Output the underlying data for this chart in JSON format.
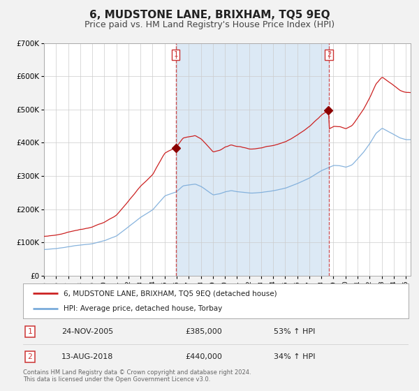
{
  "title": "6, MUDSTONE LANE, BRIXHAM, TQ5 9EQ",
  "subtitle": "Price paid vs. HM Land Registry's House Price Index (HPI)",
  "ylim": [
    0,
    700000
  ],
  "yticks": [
    0,
    100000,
    200000,
    300000,
    400000,
    500000,
    600000,
    700000
  ],
  "ytick_labels": [
    "£0",
    "£100K",
    "£200K",
    "£300K",
    "£400K",
    "£500K",
    "£600K",
    "£700K"
  ],
  "xlim_start": 1995.0,
  "xlim_end": 2025.4,
  "hpi_color": "#7aabda",
  "price_color": "#cc2222",
  "marker_color": "#8b0000",
  "fig_bg_color": "#f2f2f2",
  "plot_bg_color": "#ffffff",
  "shade_color": "#dce9f5",
  "grid_color": "#cccccc",
  "dashed_color": "#cc3333",
  "title_fontsize": 11,
  "subtitle_fontsize": 9,
  "legend_entries": [
    "6, MUDSTONE LANE, BRIXHAM, TQ5 9EQ (detached house)",
    "HPI: Average price, detached house, Torbay"
  ],
  "purchase1_date": 2005.92,
  "purchase1_price": 385000,
  "purchase2_date": 2018.62,
  "purchase2_price": 440000,
  "table_rows": [
    [
      "1",
      "24-NOV-2005",
      "£385,000",
      "53% ↑ HPI"
    ],
    [
      "2",
      "13-AUG-2018",
      "£440,000",
      "34% ↑ HPI"
    ]
  ],
  "footer_line1": "Contains HM Land Registry data © Crown copyright and database right 2024.",
  "footer_line2": "This data is licensed under the Open Government Licence v3.0.",
  "hpi_key_years": [
    1995.0,
    1996.0,
    1997.0,
    1998.0,
    1999.0,
    2000.0,
    2001.0,
    2002.0,
    2003.0,
    2004.0,
    2005.0,
    2005.92,
    2006.5,
    2007.5,
    2008.0,
    2008.5,
    2009.0,
    2009.5,
    2010.0,
    2010.5,
    2011.0,
    2012.0,
    2013.0,
    2014.0,
    2015.0,
    2016.0,
    2017.0,
    2018.0,
    2018.62,
    2019.0,
    2019.5,
    2020.0,
    2020.5,
    2021.0,
    2021.5,
    2022.0,
    2022.5,
    2023.0,
    2023.5,
    2024.0,
    2024.5,
    2025.0
  ],
  "hpi_key_vals": [
    78000,
    80000,
    85000,
    91000,
    96000,
    105000,
    120000,
    148000,
    175000,
    198000,
    240000,
    252000,
    270000,
    275000,
    268000,
    255000,
    242000,
    245000,
    252000,
    255000,
    252000,
    248000,
    250000,
    255000,
    264000,
    278000,
    295000,
    318000,
    328000,
    334000,
    333000,
    328000,
    335000,
    355000,
    375000,
    400000,
    430000,
    445000,
    435000,
    425000,
    415000,
    410000
  ]
}
